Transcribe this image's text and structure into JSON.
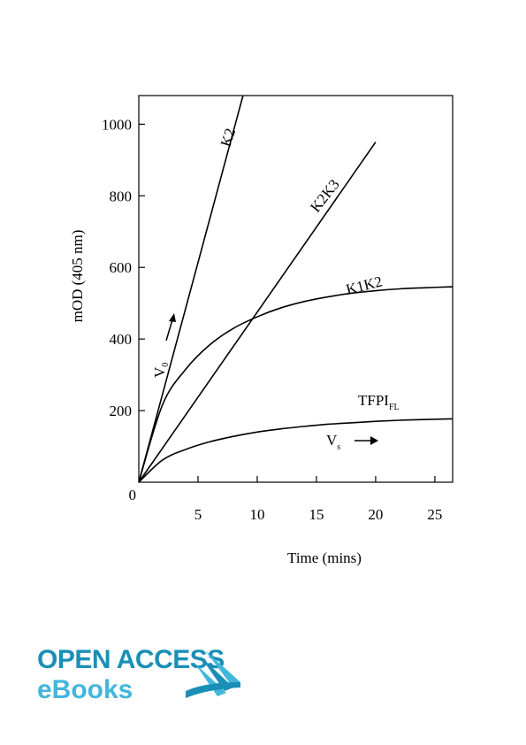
{
  "chart_data": {
    "type": "line",
    "xlabel": "Time (mins)",
    "ylabel": "mOD (405 nm)",
    "xlim": [
      0,
      26.5
    ],
    "ylim": [
      0,
      1080
    ],
    "xticks": [
      5,
      10,
      15,
      20,
      25
    ],
    "yticks": [
      0,
      200,
      400,
      600,
      800,
      1000
    ],
    "grid": false,
    "series": [
      {
        "name": "K2",
        "x": [
          0,
          8.8
        ],
        "y": [
          0,
          1080
        ]
      },
      {
        "name": "K2K3",
        "x": [
          0,
          20
        ],
        "y": [
          0,
          950
        ]
      },
      {
        "name": "K1K2",
        "x": [
          0,
          2,
          4,
          6,
          8,
          10,
          12,
          14,
          16,
          18,
          20,
          22,
          24,
          26.5
        ],
        "y": [
          0,
          216,
          317,
          384,
          430,
          462,
          487,
          505,
          518,
          528,
          535,
          540,
          543,
          546
        ]
      },
      {
        "name": "TFPI",
        "name_sub": "FL",
        "x": [
          0,
          2,
          4,
          6,
          8,
          10,
          12,
          14,
          16,
          18,
          20,
          22,
          24,
          26.5
        ],
        "y": [
          0,
          62,
          92,
          113,
          128,
          140,
          149,
          156,
          162,
          166,
          170,
          173,
          175,
          177
        ]
      }
    ],
    "annotations": [
      {
        "text": "V",
        "sub": "0",
        "arrow": "→"
      },
      {
        "text": "V",
        "sub": "s",
        "arrow": "→"
      }
    ]
  },
  "logo": {
    "line1": "OPEN ACCESS",
    "line2": "eBooks"
  },
  "colors": {
    "ink": "#000000",
    "logo_dark": "#1a8fb6",
    "logo_light": "#43b6dc"
  }
}
